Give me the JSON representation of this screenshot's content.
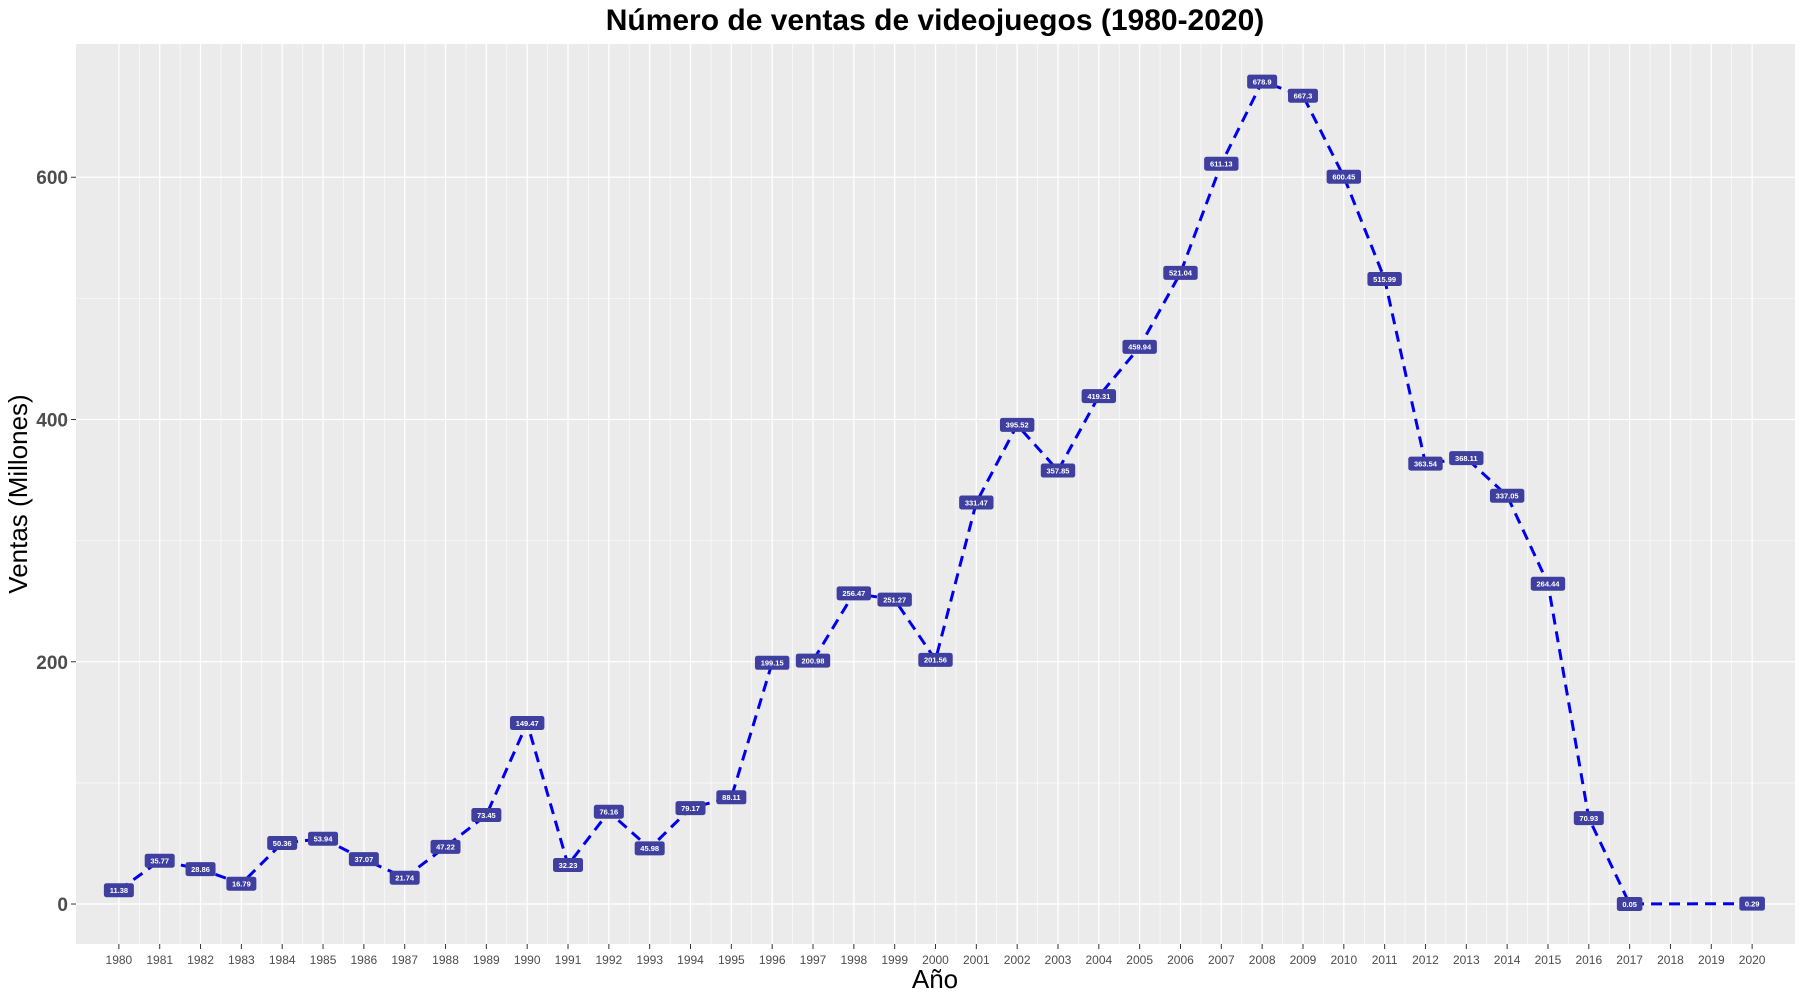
{
  "chart_data": {
    "type": "line",
    "title": "Número de ventas de videojuegos (1980-2020)",
    "xlabel": "Año",
    "ylabel": "Ventas (Millones)",
    "x": [
      1980,
      1981,
      1982,
      1983,
      1984,
      1985,
      1986,
      1987,
      1988,
      1989,
      1990,
      1991,
      1992,
      1993,
      1994,
      1995,
      1996,
      1997,
      1998,
      1999,
      2000,
      2001,
      2002,
      2003,
      2004,
      2005,
      2006,
      2007,
      2008,
      2009,
      2010,
      2011,
      2012,
      2013,
      2014,
      2015,
      2016,
      2017,
      2018,
      2019,
      2020
    ],
    "x_ticks": [
      "1980",
      "1981",
      "1982",
      "1983",
      "1984",
      "1985",
      "1986",
      "1987",
      "1988",
      "1989",
      "1990",
      "1991",
      "1992",
      "1993",
      "1994",
      "1995",
      "1996",
      "1997",
      "1998",
      "1999",
      "2000",
      "2001",
      "2002",
      "2003",
      "2004",
      "2005",
      "2006",
      "2007",
      "2008",
      "2009",
      "2010",
      "2011",
      "2012",
      "2013",
      "2014",
      "2015",
      "2016",
      "2017",
      "2018",
      "2019",
      "2020"
    ],
    "points": [
      {
        "x": 1980,
        "y": 11.38,
        "label": "11.38"
      },
      {
        "x": 1981,
        "y": 35.77,
        "label": "35.77"
      },
      {
        "x": 1982,
        "y": 28.86,
        "label": "28.86"
      },
      {
        "x": 1983,
        "y": 16.79,
        "label": "16.79"
      },
      {
        "x": 1984,
        "y": 50.36,
        "label": "50.36"
      },
      {
        "x": 1985,
        "y": 53.94,
        "label": "53.94"
      },
      {
        "x": 1986,
        "y": 37.07,
        "label": "37.07"
      },
      {
        "x": 1987,
        "y": 21.74,
        "label": "21.74"
      },
      {
        "x": 1988,
        "y": 47.22,
        "label": "47.22"
      },
      {
        "x": 1989,
        "y": 73.45,
        "label": "73.45"
      },
      {
        "x": 1990,
        "y": 149.47,
        "label": "149.47"
      },
      {
        "x": 1991,
        "y": 32.23,
        "label": "32.23"
      },
      {
        "x": 1992,
        "y": 76.16,
        "label": "76.16"
      },
      {
        "x": 1993,
        "y": 45.98,
        "label": "45.98"
      },
      {
        "x": 1994,
        "y": 79.17,
        "label": "79.17"
      },
      {
        "x": 1995,
        "y": 88.11,
        "label": "88.11"
      },
      {
        "x": 1996,
        "y": 199.15,
        "label": "199.15"
      },
      {
        "x": 1997,
        "y": 200.98,
        "label": "200.98"
      },
      {
        "x": 1998,
        "y": 256.47,
        "label": "256.47"
      },
      {
        "x": 1999,
        "y": 251.27,
        "label": "251.27"
      },
      {
        "x": 2000,
        "y": 201.56,
        "label": "201.56"
      },
      {
        "x": 2001,
        "y": 331.47,
        "label": "331.47"
      },
      {
        "x": 2002,
        "y": 395.52,
        "label": "395.52"
      },
      {
        "x": 2003,
        "y": 357.85,
        "label": "357.85"
      },
      {
        "x": 2004,
        "y": 419.31,
        "label": "419.31"
      },
      {
        "x": 2005,
        "y": 459.94,
        "label": "459.94"
      },
      {
        "x": 2006,
        "y": 521.04,
        "label": "521.04"
      },
      {
        "x": 2007,
        "y": 611.13,
        "label": "611.13"
      },
      {
        "x": 2008,
        "y": 678.9,
        "label": "678.9"
      },
      {
        "x": 2009,
        "y": 667.3,
        "label": "667.3"
      },
      {
        "x": 2010,
        "y": 600.45,
        "label": "600.45"
      },
      {
        "x": 2011,
        "y": 515.99,
        "label": "515.99"
      },
      {
        "x": 2012,
        "y": 363.54,
        "label": "363.54"
      },
      {
        "x": 2013,
        "y": 368.11,
        "label": "368.11"
      },
      {
        "x": 2014,
        "y": 337.05,
        "label": "337.05"
      },
      {
        "x": 2015,
        "y": 264.44,
        "label": "264.44"
      },
      {
        "x": 2016,
        "y": 70.93,
        "label": "70.93"
      },
      {
        "x": 2017,
        "y": 0.05,
        "label": "0.05"
      },
      {
        "x": 2020,
        "y": 0.29,
        "label": "0.29"
      }
    ],
    "y_ticks": [
      0,
      200,
      400,
      600
    ],
    "ylim": [
      -33,
      710
    ],
    "xlim": [
      1978.95,
      2021.05
    ],
    "grid": true,
    "colors": {
      "line": "#0000ee",
      "label_fill": "#3f3fa0",
      "label_text": "#ffffff",
      "panel": "#ebebeb",
      "grid": "#ffffff"
    }
  }
}
